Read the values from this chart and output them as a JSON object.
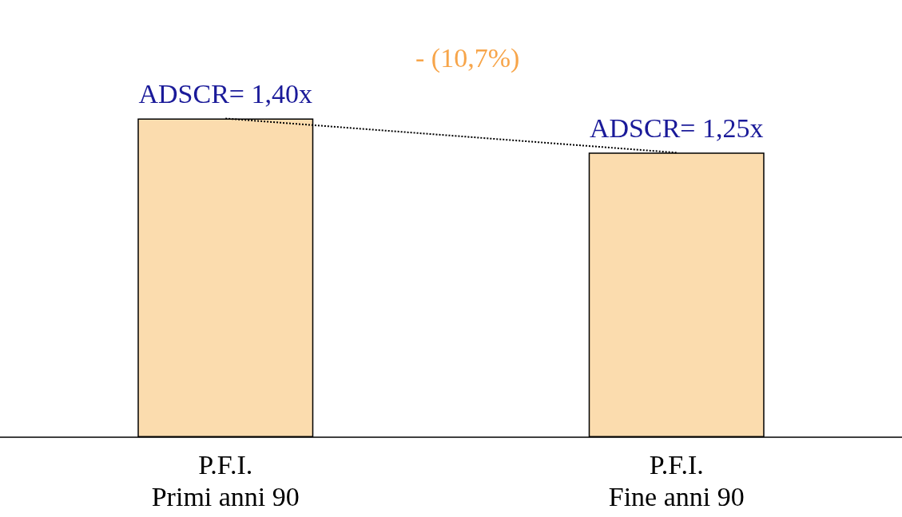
{
  "chart_data": {
    "type": "bar",
    "categories": [
      "P.F.I.\nPrimi anni 90",
      "P.F.I.\nFine anni 90"
    ],
    "series": [
      {
        "color": "#fbdcae",
        "values": [
          1.4,
          1.25
        ],
        "value_labels": [
          "ADSCR= 1,40x",
          "ADSCR= 1,25x"
        ]
      },
      {
        "type": "line",
        "color": "#000000",
        "values": [
          1.4,
          1.25
        ],
        "line_style": "dotted",
        "marker": "none"
      }
    ],
    "annotations": [
      "- (10,7%)"
    ],
    "grid": false
  }
}
